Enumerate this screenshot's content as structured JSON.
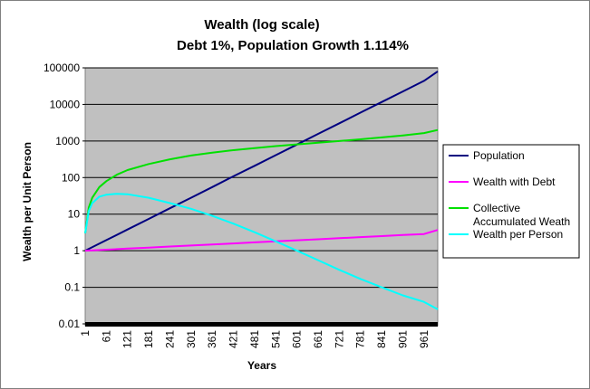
{
  "chart_data": {
    "type": "line",
    "title": "Wealth (log scale)",
    "subtitle": "Debt 1%, Population Growth 1.114%",
    "xlabel": "Years",
    "ylabel": "Wealth per Unit Person",
    "y_scale": "log",
    "ylim": [
      0.01,
      100000
    ],
    "xlim": [
      1,
      1000
    ],
    "y_ticks": [
      "0.01",
      "0.1",
      "1",
      "10",
      "100",
      "1000",
      "10000",
      "100000"
    ],
    "y_tick_values": [
      0.01,
      0.1,
      1,
      10,
      100,
      1000,
      10000,
      100000
    ],
    "x_ticks": [
      "1",
      "61",
      "121",
      "181",
      "241",
      "301",
      "361",
      "421",
      "481",
      "541",
      "601",
      "661",
      "721",
      "781",
      "841",
      "901",
      "961"
    ],
    "x_tick_values": [
      1,
      61,
      121,
      181,
      241,
      301,
      361,
      421,
      481,
      541,
      601,
      661,
      721,
      781,
      841,
      901,
      961
    ],
    "grid": "horizontal major gridlines",
    "plot_background": "#c0c0c0",
    "legend_position": "right",
    "series": [
      {
        "name": "Population",
        "color": "#000080",
        "x": [
          1,
          61,
          121,
          181,
          241,
          301,
          361,
          421,
          481,
          541,
          601,
          661,
          721,
          781,
          841,
          901,
          961,
          1000
        ],
        "values": [
          1,
          1.95,
          3.8,
          7.4,
          14.5,
          28,
          55,
          108,
          210,
          410,
          800,
          1560,
          3050,
          5950,
          11600,
          22600,
          44000,
          80000
        ]
      },
      {
        "name": "Wealth with Debt",
        "color": "#ff00ff",
        "x": [
          1,
          61,
          121,
          181,
          241,
          301,
          361,
          421,
          481,
          541,
          601,
          661,
          721,
          781,
          841,
          901,
          961,
          1000
        ],
        "values": [
          1,
          1.07,
          1.14,
          1.22,
          1.3,
          1.39,
          1.48,
          1.58,
          1.69,
          1.81,
          1.93,
          2.06,
          2.2,
          2.35,
          2.51,
          2.68,
          2.86,
          3.7
        ]
      },
      {
        "name": "Collective Accumulated Weath",
        "color": "#00e000",
        "x": [
          1,
          11,
          21,
          41,
          61,
          91,
          121,
          181,
          241,
          301,
          361,
          421,
          481,
          541,
          601,
          661,
          721,
          781,
          841,
          901,
          961,
          1000
        ],
        "values": [
          3,
          15,
          28,
          55,
          80,
          120,
          160,
          235,
          315,
          400,
          480,
          560,
          640,
          725,
          810,
          900,
          1000,
          1110,
          1250,
          1420,
          1650,
          2000
        ]
      },
      {
        "name": "Wealth per Person",
        "color": "#00ffff",
        "x": [
          1,
          11,
          21,
          41,
          61,
          91,
          121,
          181,
          241,
          301,
          361,
          421,
          481,
          541,
          601,
          661,
          721,
          781,
          841,
          901,
          961,
          1000
        ],
        "values": [
          3,
          12,
          20,
          30,
          34,
          36,
          35,
          28,
          20,
          14,
          9,
          5.5,
          3.2,
          1.8,
          1.0,
          0.55,
          0.3,
          0.17,
          0.1,
          0.06,
          0.04,
          0.025
        ]
      }
    ]
  }
}
